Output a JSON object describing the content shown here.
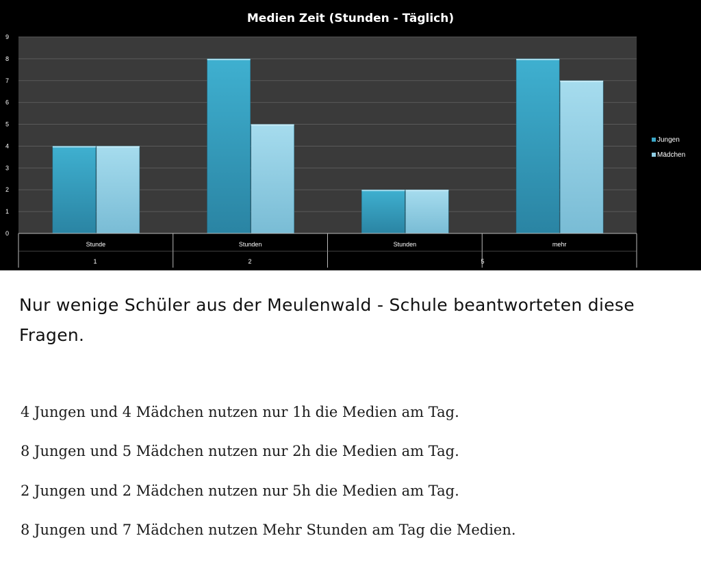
{
  "chart_data": {
    "type": "bar",
    "title": "Medien Zeit (Stunden - Täglich)",
    "categories": [
      {
        "line1": "Stunde",
        "line2": "1"
      },
      {
        "line1": "Stunden",
        "line2": "2"
      },
      {
        "line1": "Stunden",
        "line2": "5"
      },
      {
        "line1": "mehr",
        "line2": ""
      }
    ],
    "series": [
      {
        "name": "Jungen",
        "values": [
          4,
          8,
          2,
          8
        ],
        "color": "#3aa6c6"
      },
      {
        "name": "Mädchen",
        "values": [
          4,
          5,
          2,
          7
        ],
        "color": "#8fcde3"
      }
    ],
    "ylim": [
      0,
      9
    ],
    "yticks": [
      "0",
      "1",
      "2",
      "3",
      "4",
      "5",
      "6",
      "7",
      "8",
      "9"
    ],
    "grid": true,
    "legend": "right",
    "colors": {
      "background": "#000000",
      "plot": "#3a3a3a",
      "grid": "#5a5a5a"
    }
  },
  "text": {
    "heading": "Nur wenige Schüler aus der Meulenwald - Schule beantworteten diese Fragen.",
    "facts": [
      "4 Jungen und 4 Mädchen nutzen nur 1h die Medien am Tag.",
      "8 Jungen und 5 Mädchen nutzen nur 2h die Medien am Tag.",
      "2 Jungen und 2 Mädchen nutzen nur 5h die Medien am Tag.",
      "8 Jungen und 7 Mädchen nutzen Mehr Stunden am Tag die Medien."
    ]
  }
}
